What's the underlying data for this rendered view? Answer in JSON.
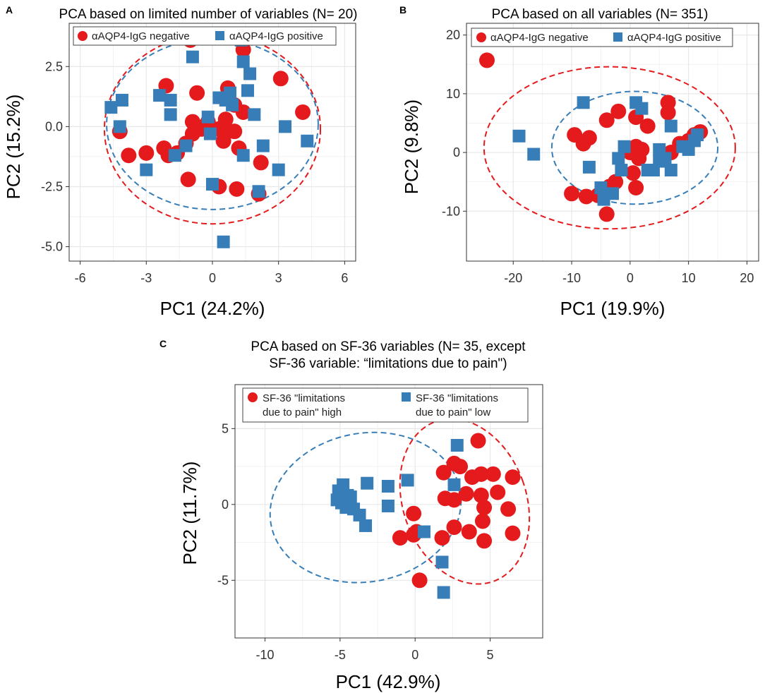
{
  "colors": {
    "negative": "#e41a1c",
    "positive": "#377eb8",
    "grid": "#e8e8e8",
    "border": "#333333"
  },
  "chart_data": [
    {
      "panel": "A",
      "type": "scatter",
      "title": "PCA based on limited number of variables (N= 20)",
      "xlabel": "PC1 (24.2%)",
      "ylabel": "PC2 (15.2%)",
      "xlim": [
        -6.5,
        6.5
      ],
      "ylim": [
        -5.6,
        4.3
      ],
      "xticks": [
        -6,
        -3,
        0,
        3,
        6
      ],
      "xtick_labels": [
        "-6",
        "-3",
        "0",
        "3",
        "6"
      ],
      "yticks": [
        -5,
        -2.5,
        0,
        2.5
      ],
      "ytick_labels": [
        "-5.0",
        "-2.5",
        "0.0",
        "2.5"
      ],
      "grid": true,
      "legend_position": "top-left",
      "series": [
        {
          "name": "αAQP4-IgG negative",
          "color_key": "negative",
          "marker": "circle",
          "points": [
            [
              -4.2,
              -0.2
            ],
            [
              -3.8,
              -1.2
            ],
            [
              -3,
              -1.1
            ],
            [
              -2.1,
              1.7
            ],
            [
              -2.2,
              -0.9
            ],
            [
              -2,
              -1.2
            ],
            [
              -1.6,
              -1.1
            ],
            [
              -1.2,
              -0.7
            ],
            [
              -0.9,
              -0.3
            ],
            [
              -0.5,
              -0.1
            ],
            [
              -1.1,
              -2.2
            ],
            [
              -0.9,
              0.2
            ],
            [
              -0.7,
              1.4
            ],
            [
              -0.4,
              0
            ],
            [
              -0.2,
              0.2
            ],
            [
              0.3,
              -0.1
            ],
            [
              0.7,
              -0.2
            ],
            [
              0.5,
              -0.6
            ],
            [
              0.7,
              1.6
            ],
            [
              1,
              0.9
            ],
            [
              0.6,
              0.3
            ],
            [
              1,
              -0.2
            ],
            [
              1.2,
              -0.9
            ],
            [
              1.4,
              0.6
            ],
            [
              1.4,
              3.2
            ],
            [
              -1,
              3.6
            ],
            [
              0.3,
              -2.5
            ],
            [
              1.1,
              -2.6
            ],
            [
              2.1,
              -2.8
            ],
            [
              2.2,
              -1.5
            ],
            [
              3.1,
              2
            ],
            [
              4.1,
              0.6
            ]
          ]
        },
        {
          "name": "αAQP4-IgG positive",
          "color_key": "positive",
          "marker": "square",
          "points": [
            [
              -4.6,
              0.8
            ],
            [
              -4.2,
              0
            ],
            [
              -4.1,
              1.1
            ],
            [
              -3,
              -1.8
            ],
            [
              -2.4,
              1.3
            ],
            [
              -1.9,
              1.1
            ],
            [
              -1.7,
              -1.2
            ],
            [
              -1.9,
              0.5
            ],
            [
              -1.2,
              -0.8
            ],
            [
              -0.9,
              2.9
            ],
            [
              -0.2,
              0.4
            ],
            [
              -0.1,
              -0.3
            ],
            [
              0,
              -2.4
            ],
            [
              0.3,
              1.2
            ],
            [
              0.6,
              1.1
            ],
            [
              0.8,
              1.4
            ],
            [
              0.9,
              0.9
            ],
            [
              1.4,
              2.7
            ],
            [
              1.7,
              2.2
            ],
            [
              1.6,
              1.5
            ],
            [
              1.9,
              0.5
            ],
            [
              1.4,
              -1.2
            ],
            [
              2.3,
              -0.8
            ],
            [
              2.1,
              -2.7
            ],
            [
              3,
              -1.8
            ],
            [
              3.3,
              0
            ],
            [
              4.3,
              -0.6
            ],
            [
              0.5,
              -4.8
            ],
            [
              1.3,
              3.6
            ]
          ]
        }
      ],
      "ellipses": [
        {
          "color_key": "negative",
          "center": [
            0,
            -0.1
          ],
          "radii": [
            4.9,
            3.95
          ]
        },
        {
          "color_key": "positive",
          "center": [
            0,
            0.1
          ],
          "radii": [
            4.8,
            3.55
          ]
        }
      ]
    },
    {
      "panel": "B",
      "type": "scatter",
      "title": "PCA based on all variables (N= 351)",
      "xlabel": "PC1 (19.9%)",
      "ylabel": "PC2 (9.8%)",
      "xlim": [
        -28,
        22
      ],
      "ylim": [
        -18.5,
        22
      ],
      "xticks": [
        -20,
        -10,
        0,
        10,
        20
      ],
      "xtick_labels": [
        "-20",
        "-10",
        "0",
        "10",
        "20"
      ],
      "yticks": [
        -10,
        0,
        10,
        20
      ],
      "ytick_labels": [
        "-10",
        "0",
        "10",
        "20"
      ],
      "grid": true,
      "legend_position": "top-left",
      "series": [
        {
          "name": "αAQP4-IgG negative",
          "color_key": "negative",
          "marker": "circle",
          "points": [
            [
              -24.5,
              15.7
            ],
            [
              -9.5,
              3
            ],
            [
              -8,
              1.5
            ],
            [
              -7,
              2.5
            ],
            [
              -4,
              5.5
            ],
            [
              -2,
              7
            ],
            [
              1,
              6
            ],
            [
              3,
              4.5
            ],
            [
              6.5,
              8.5
            ],
            [
              6.5,
              6.8
            ],
            [
              0,
              0
            ],
            [
              1,
              1
            ],
            [
              2,
              0.5
            ],
            [
              1.5,
              -1
            ],
            [
              0.5,
              -3.5
            ],
            [
              1,
              -6
            ],
            [
              -2.5,
              -5
            ],
            [
              -3.5,
              -5.8
            ],
            [
              -4,
              -10.5
            ],
            [
              -5.5,
              -7.3
            ],
            [
              -7.5,
              -7.5
            ],
            [
              -10,
              -7
            ],
            [
              7,
              0
            ],
            [
              8.5,
              1.5
            ],
            [
              10,
              2
            ],
            [
              11,
              3
            ],
            [
              12,
              3.5
            ]
          ]
        },
        {
          "name": "αAQP4-IgG positive",
          "color_key": "positive",
          "marker": "square",
          "points": [
            [
              -19,
              2.8
            ],
            [
              -16.5,
              -0.3
            ],
            [
              -8,
              8.5
            ],
            [
              -7,
              -2.5
            ],
            [
              1,
              8.5
            ],
            [
              2,
              7.5
            ],
            [
              -2,
              -1
            ],
            [
              -1,
              1
            ],
            [
              -1.5,
              -3
            ],
            [
              -3,
              -7
            ],
            [
              -4.5,
              -8
            ],
            [
              -5,
              -6
            ],
            [
              3,
              -3
            ],
            [
              4,
              -3
            ],
            [
              5,
              0.5
            ],
            [
              5,
              -1.5
            ],
            [
              6,
              -1
            ],
            [
              7,
              -3
            ],
            [
              7,
              4.5
            ],
            [
              9,
              1
            ],
            [
              10,
              0.5
            ],
            [
              11,
              2
            ],
            [
              11.5,
              3
            ]
          ]
        }
      ],
      "ellipses": [
        {
          "color_key": "negative",
          "center": [
            -3.5,
            0.8
          ],
          "radii": [
            21.5,
            13.8
          ]
        },
        {
          "color_key": "positive",
          "center": [
            0.8,
            0.8
          ],
          "radii": [
            14.2,
            9.6
          ]
        }
      ]
    },
    {
      "panel": "C",
      "type": "scatter",
      "title_line1": "PCA based on SF-36 variables (N= 35, except",
      "title_line2": "SF-36 variable: “limitations due to pain\")",
      "xlabel": "PC1 (42.9%)",
      "ylabel": "PC2 (11.7%)",
      "xlim": [
        -12,
        8.5
      ],
      "ylim": [
        -8.8,
        7.9
      ],
      "xticks": [
        -10,
        -5,
        0,
        5
      ],
      "xtick_labels": [
        "-10",
        "-5",
        "0",
        "5"
      ],
      "yticks": [
        -5,
        0,
        5
      ],
      "ytick_labels": [
        "-5",
        "0",
        "5"
      ],
      "grid": true,
      "legend_position": "top",
      "legend_labels": [
        {
          "line1": "SF-36 \"limitations",
          "line2": "due to pain\" high"
        },
        {
          "line1": "SF-36 \"limitations",
          "line2": "due to pain\" low"
        }
      ],
      "series": [
        {
          "name": "SF-36 \"limitations due to pain\" high",
          "color_key": "negative",
          "marker": "circle",
          "points": [
            [
              4.2,
              4.2
            ],
            [
              2.6,
              2.7
            ],
            [
              1.9,
              2.1
            ],
            [
              3.8,
              1.8
            ],
            [
              4.4,
              2
            ],
            [
              5.2,
              2
            ],
            [
              6.5,
              1.8
            ],
            [
              2,
              0.4
            ],
            [
              2.6,
              0.3
            ],
            [
              3.4,
              0.7
            ],
            [
              4.4,
              0.6
            ],
            [
              4.6,
              -0.2
            ],
            [
              6.2,
              -0.3
            ],
            [
              4.5,
              -1.1
            ],
            [
              2.6,
              -1.5
            ],
            [
              3.6,
              -1.8
            ],
            [
              1.8,
              -2.2
            ],
            [
              4.6,
              -2.4
            ],
            [
              6.5,
              -1.9
            ],
            [
              -1,
              -2.2
            ],
            [
              -0.1,
              -2
            ],
            [
              -0.1,
              -0.6
            ],
            [
              0.3,
              -5
            ],
            [
              0.1,
              -1.8
            ],
            [
              3,
              2.5
            ],
            [
              5.5,
              0.8
            ]
          ]
        },
        {
          "name": "SF-36 \"limitations due to pain\" low",
          "color_key": "positive",
          "marker": "square",
          "points": [
            [
              -5.1,
              0.9
            ],
            [
              -4.8,
              1.3
            ],
            [
              -5.2,
              0.3
            ],
            [
              -4.9,
              0.1
            ],
            [
              -4.5,
              0.6
            ],
            [
              -4.3,
              0.5
            ],
            [
              -4.6,
              -0.2
            ],
            [
              -4.1,
              -0.3
            ],
            [
              -3.7,
              -0.7
            ],
            [
              -3.3,
              -1.4
            ],
            [
              -3.2,
              1.4
            ],
            [
              -1.8,
              1.2
            ],
            [
              -0.5,
              1.6
            ],
            [
              -1.8,
              -0.1
            ],
            [
              0.6,
              -1.8
            ],
            [
              2.8,
              3.9
            ],
            [
              2.6,
              1.3
            ],
            [
              1.8,
              -3.8
            ],
            [
              1.9,
              -5.8
            ]
          ]
        }
      ],
      "ellipses": [
        {
          "color_key": "positive",
          "center": [
            -3.3,
            -0.2
          ],
          "radii": [
            6.4,
            4.9
          ],
          "angle_deg": 10
        },
        {
          "color_key": "negative",
          "center": [
            3.3,
            0.2
          ],
          "radii": [
            4.1,
            5.6
          ],
          "angle_deg": 20
        }
      ]
    }
  ]
}
